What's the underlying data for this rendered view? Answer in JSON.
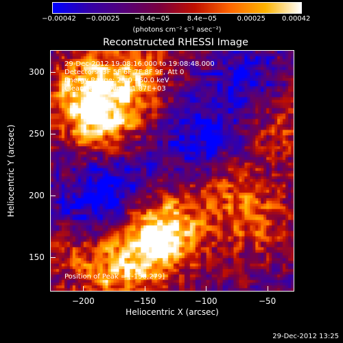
{
  "chart_data": {
    "type": "heatmap",
    "title": "Reconstructed RHESSI Image",
    "xlabel": "Heliocentric X (arcsec)",
    "ylabel": "Heliocentric Y (arcsec)",
    "xlim": [
      -227,
      -28
    ],
    "ylim": [
      122,
      318
    ],
    "x_ticks": [
      -200,
      -150,
      -100,
      -50
    ],
    "y_ticks": [
      150,
      200,
      250,
      300
    ],
    "x_tick_labels": [
      "−200",
      "−150",
      "−100",
      "−50"
    ],
    "y_tick_labels": [
      "150",
      "200",
      "250",
      "300"
    ],
    "colorbar": {
      "range": [
        -0.00042,
        0.00042
      ],
      "ticks": [
        -0.00042,
        -0.00025,
        -8.4e-05,
        8.4e-05,
        0.00025,
        0.00042
      ],
      "tick_labels": [
        "−0.00042",
        "−0.00025",
        "−8.4e−05",
        "8.4e−05",
        "0.00025",
        "0.00042"
      ],
      "units": "(photons cm⁻² s⁻¹ asec⁻²)",
      "colors": [
        "#0000ff",
        "#3300aa",
        "#55007a",
        "#7a0040",
        "#c01000",
        "#ff6600",
        "#ffb400",
        "#ffffff"
      ]
    },
    "annotations": {
      "time": "29-Dec-2012 19:08:16.000 to 19:08:48.000",
      "detectors": "Detectors: 3F 5F 6F 7F 8F 9F, Att 0",
      "energy": "Energy Range: 25.0 - 50.0 keV",
      "clean": "Clean    Total counts: 1.87E+03",
      "peak": "Position of Peak = [-158,279]"
    },
    "bright_regions": [
      {
        "x": -200,
        "y": 285,
        "intensity": 1.0
      },
      {
        "x": -185,
        "y": 260,
        "intensity": 0.95
      },
      {
        "x": -160,
        "y": 300,
        "intensity": 0.8
      },
      {
        "x": -150,
        "y": 160,
        "intensity": 0.9
      },
      {
        "x": -130,
        "y": 175,
        "intensity": 0.85
      },
      {
        "x": -175,
        "y": 135,
        "intensity": 0.75
      },
      {
        "x": -90,
        "y": 215,
        "intensity": 0.6
      },
      {
        "x": -60,
        "y": 180,
        "intensity": 0.7
      },
      {
        "x": -40,
        "y": 260,
        "intensity": 0.55
      },
      {
        "x": -210,
        "y": 160,
        "intensity": 0.6
      }
    ],
    "dark_regions": [
      {
        "x": -105,
        "y": 240,
        "intensity": -0.8
      },
      {
        "x": -175,
        "y": 210,
        "intensity": -0.7
      },
      {
        "x": -70,
        "y": 290,
        "intensity": -0.6
      },
      {
        "x": -200,
        "y": 180,
        "intensity": -0.6
      }
    ]
  },
  "footer": {
    "timestamp": "29-Dec-2012 13:25"
  }
}
